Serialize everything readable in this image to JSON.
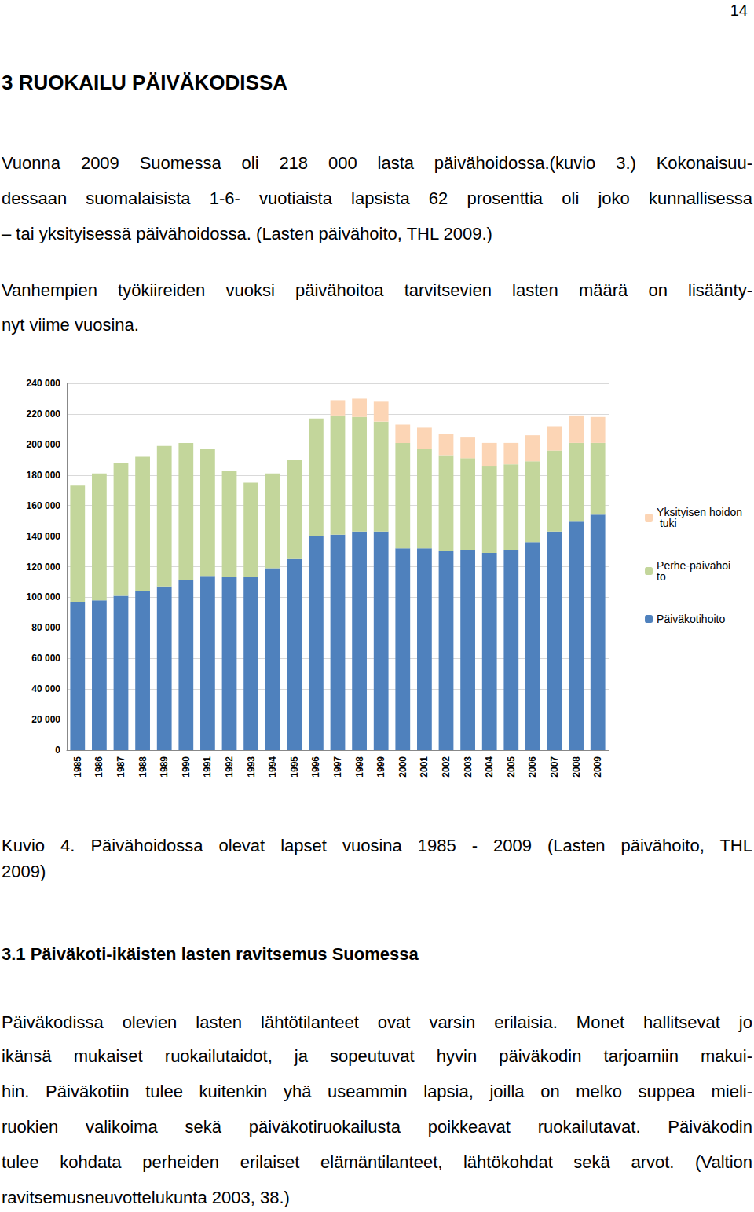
{
  "document": {
    "page_number": "14",
    "heading": "3 RUOKAILU PÄIVÄKODISSA",
    "paragraph_1": [
      "Vuonna 2009 Suomessa oli 218 000 lasta päivähoidossa.(kuvio 3.) Kokonaisuu-",
      "dessaan suomalaisista 1-6- vuotiaista lapsista 62 prosenttia oli joko kunnallisessa",
      "– tai yksityisessä päivähoidossa. (Lasten päivähoito, THL 2009.)"
    ],
    "paragraph_2": [
      "Vanhempien työkiireiden vuoksi päivähoitoa tarvitsevien lasten määrä on lisäänty-",
      "nyt viime vuosina."
    ],
    "caption": [
      "Kuvio 4. Päivähoidossa olevat lapset vuosina 1985 - 2009 (Lasten päivähoito, THL",
      "2009)"
    ],
    "section_heading": "3.1 Päiväkoti-ikäisten lasten ravitsemus Suomessa",
    "paragraph_3": [
      "Päiväkodissa olevien lasten lähtötilanteet ovat varsin erilaisia. Monet hallitsevat jo",
      "ikänsä mukaiset ruokailutaidot, ja sopeutuvat hyvin päiväkodin tarjoamiin makui-",
      "hin. Päiväkotiin tulee kuitenkin yhä useammin lapsia, joilla on melko suppea mieli-",
      "ruokien valikoima sekä päiväkotiruokailusta poikkeavat ruokailutavat. Päiväkodin",
      "tulee kohdata perheiden erilaiset elämäntilanteet, lähtökohdat sekä arvot. (Valtion",
      "ravitsemusneuvottelukunta 2003, 38.)"
    ]
  },
  "chart_data": {
    "type": "bar",
    "stacked": true,
    "grid": true,
    "legend": "right",
    "categories": [
      "1985",
      "1986",
      "1987",
      "1988",
      "1989",
      "1990",
      "1991",
      "1992",
      "1993",
      "1994",
      "1995",
      "1996",
      "1997",
      "1998",
      "1999",
      "2000",
      "2001",
      "2002",
      "2003",
      "2004",
      "2005",
      "2006",
      "2007",
      "2008",
      "2009"
    ],
    "series": [
      {
        "name": "Päiväkotihoito",
        "color": "#4f81bd",
        "values": [
          97000,
          98000,
          101000,
          104000,
          107000,
          111000,
          114000,
          113000,
          113000,
          119000,
          125000,
          140000,
          141000,
          143000,
          143000,
          132000,
          132000,
          130000,
          131000,
          129000,
          131000,
          136000,
          143000,
          150000,
          154000
        ]
      },
      {
        "name": "Perhe-päivähoito",
        "color": "#c3d69b",
        "values": [
          76000,
          83000,
          87000,
          88000,
          92000,
          90000,
          83000,
          70000,
          62000,
          62000,
          65000,
          77000,
          78000,
          75000,
          72000,
          69000,
          65000,
          63000,
          60000,
          57000,
          56000,
          53000,
          53000,
          51000,
          47000
        ]
      },
      {
        "name": "Yksityisen hoidon tuki",
        "color": "#fcd5b5",
        "values": [
          null,
          null,
          null,
          null,
          null,
          null,
          null,
          null,
          null,
          null,
          null,
          null,
          10000,
          12000,
          13000,
          12000,
          14000,
          14000,
          14000,
          15000,
          14000,
          17000,
          16000,
          18000,
          17000
        ]
      }
    ],
    "ylim": [
      0,
      240000
    ],
    "yticks": [
      0,
      {
        "value": 20000,
        "label": "20 000"
      },
      {
        "value": 40000,
        "label": "40 000"
      },
      {
        "value": 60000,
        "label": "60 000"
      },
      {
        "value": 80000,
        "label": "80 000"
      },
      {
        "value": 100000,
        "label": "100 000"
      },
      {
        "value": 120000,
        "label": "120 000"
      },
      {
        "value": 140000,
        "label": "140 000"
      },
      {
        "value": 160000,
        "label": "160 000"
      },
      {
        "value": 180000,
        "label": "180 000"
      },
      {
        "value": 200000,
        "label": "200 000"
      },
      {
        "value": 220000,
        "label": "220 000"
      },
      {
        "value": 240000,
        "label": "240 000"
      }
    ]
  }
}
